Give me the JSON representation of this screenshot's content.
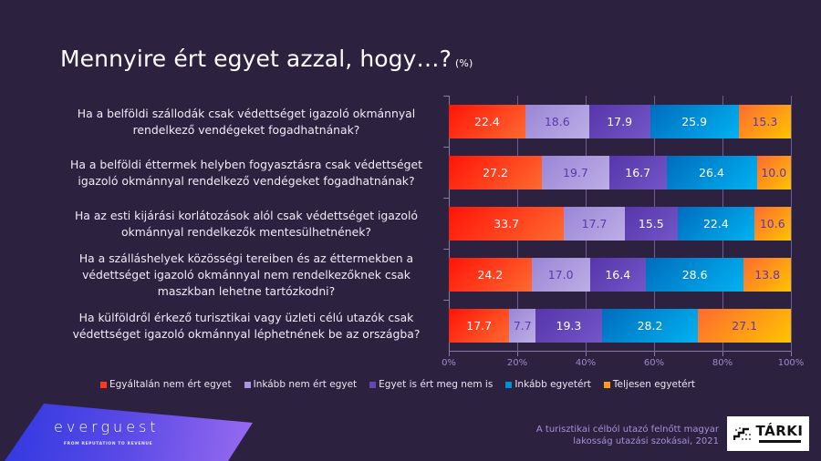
{
  "title": {
    "main": "Mennyire ért egyet azzal, hogy…?",
    "unit": "(%)"
  },
  "questions": [
    [
      "Ha a belföldi szállodák csak védettséget igazoló okmánnyal",
      "rendelkező vendégeket fogadhatnának?"
    ],
    [
      "Ha a belföldi éttermek helyben fogyasztásra csak védettséget",
      "igazoló okmánnyal rendelkező vendégeket fogadhatnának?"
    ],
    [
      "Ha az esti kijárási korlátozások alól csak védettséget igazoló",
      "okmánnyal rendelkezők mentesülhetnének?"
    ],
    [
      "Ha a szálláshelyek közösségi tereiben és az éttermekben a",
      "védettséget igazoló okmánnyal nem rendelkezőknek csak",
      "maszkban lehetne tartózkodni?"
    ],
    [
      "Ha külföldről érkező turisztikai vagy üzleti célú utazók csak",
      "védettséget igazoló okmánnyal léphetnének be az országba?"
    ]
  ],
  "chart_data": {
    "type": "bar",
    "orientation": "horizontal",
    "stacked": true,
    "title": "Mennyire ért egyet azzal, hogy…? (%)",
    "categories": [
      "Ha a belföldi szállodák csak védettséget igazoló okmánnyal rendelkező vendégeket fogadhatnának?",
      "Ha a belföldi éttermek helyben fogyasztásra csak védettséget igazoló okmánnyal rendelkező vendégeket fogadhatnának?",
      "Ha az esti kijárási korlátozások alól csak védettséget igazoló okmánnyal rendelkezők mentesülhetnének?",
      "Ha a szálláshelyek közösségi tereiben és az éttermekben a védettséget igazoló okmánnyal nem rendelkezőknek csak maszkban lehetne tartózkodni?",
      "Ha külföldről érkező turisztikai vagy üzleti célú utazók csak védettséget igazoló okmánnyal léphetnének be az országba?"
    ],
    "series": [
      {
        "name": "Egyáltalán nem ért egyet",
        "color": "#ff3a1a",
        "values": [
          22.4,
          27.2,
          33.7,
          24.2,
          17.7
        ]
      },
      {
        "name": "Inkább nem ért egyet",
        "color": "#aa98de",
        "values": [
          18.6,
          19.7,
          17.7,
          17.0,
          7.7
        ]
      },
      {
        "name": "Egyet is ért meg nem is",
        "color": "#6446b8",
        "values": [
          17.9,
          16.7,
          15.5,
          16.4,
          19.3
        ]
      },
      {
        "name": "Inkább egyetért",
        "color": "#0090d8",
        "values": [
          25.9,
          26.4,
          22.4,
          28.6,
          28.2
        ]
      },
      {
        "name": "Teljesen egyetért",
        "color": "#ff9a20",
        "values": [
          15.3,
          10.0,
          10.6,
          13.8,
          27.1
        ]
      }
    ],
    "labels": [
      [
        "22.4",
        "18.6",
        "17.9",
        "25.9",
        "15.3"
      ],
      [
        "27.2",
        "19.7",
        "16.7",
        "26.4",
        "10.0"
      ],
      [
        "33.7",
        "17.7",
        "15.5",
        "22.4",
        "10.6"
      ],
      [
        "24.2",
        "17.0",
        "16.4",
        "28.6",
        "13.8"
      ],
      [
        "17.7",
        "7.7",
        "19.3",
        "28.2",
        "27.1"
      ]
    ],
    "xticks": [
      "0%",
      "20%",
      "40%",
      "60%",
      "80%",
      "100%"
    ],
    "xlim": [
      0,
      100
    ],
    "xlabel": "",
    "ylabel": "",
    "grid": true,
    "legend_position": "bottom"
  },
  "footer": {
    "brand": "everguest",
    "tagline": "FROM REPUTATION TO REVENUE",
    "source_line1": "A turisztikai célból utazó felnőtt magyar",
    "source_line2": "lakosság utazási szokásai, 2021",
    "logo_text": "TÁRKI"
  }
}
